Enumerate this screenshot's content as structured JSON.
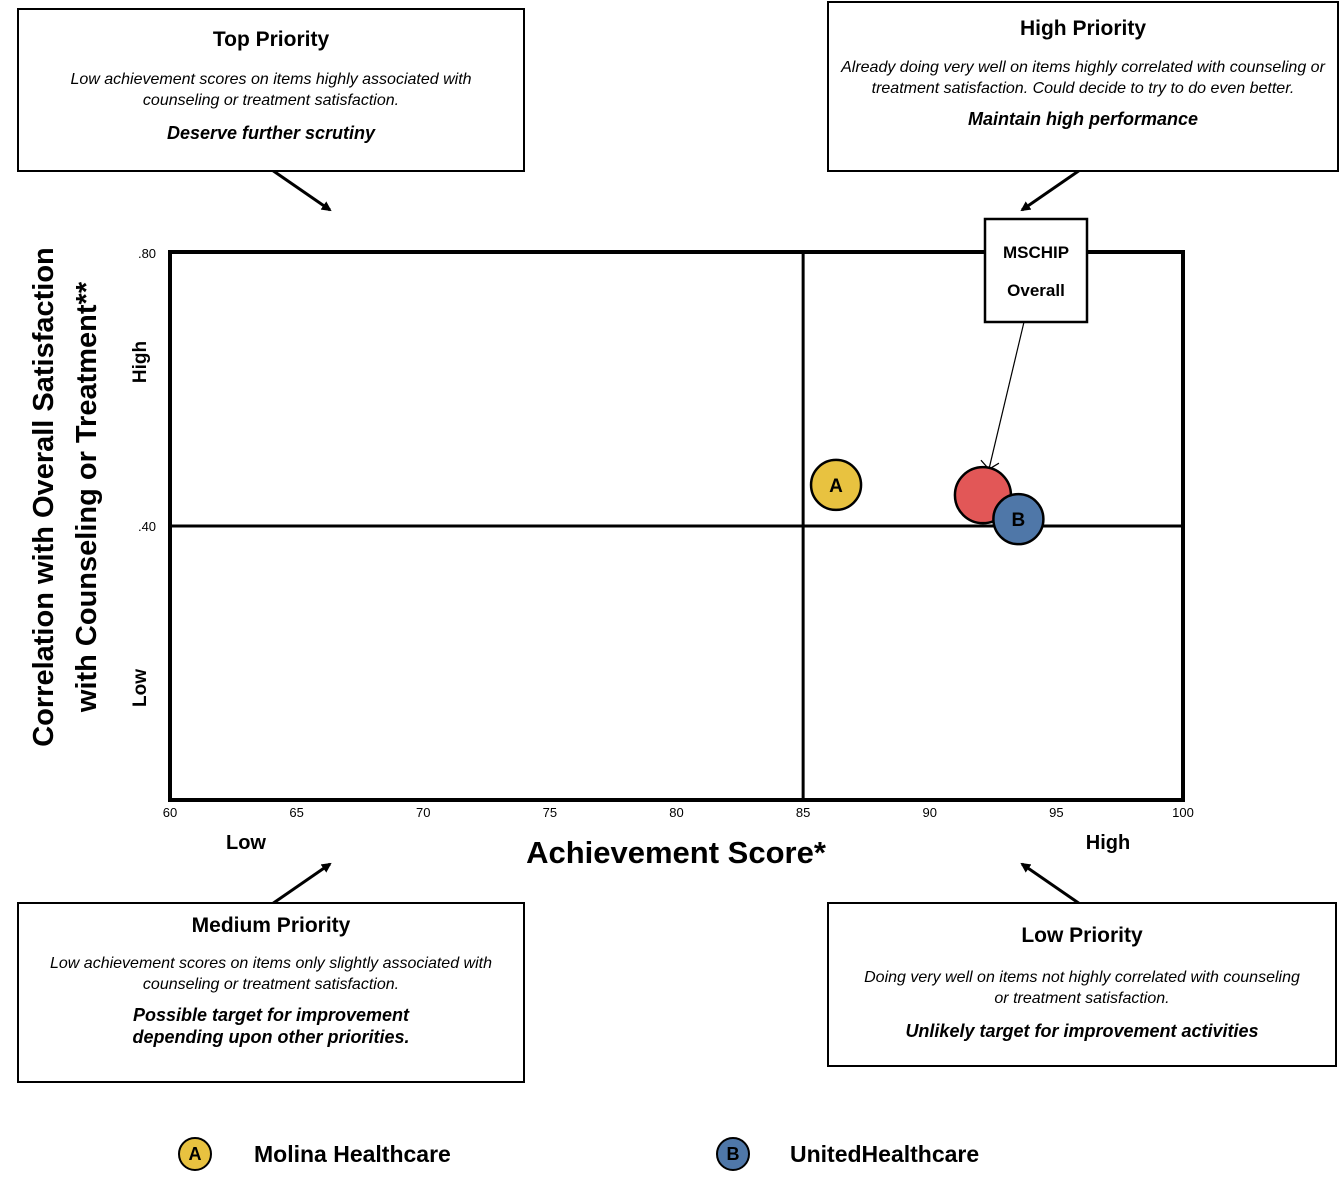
{
  "chart_data": {
    "type": "scatter",
    "xlabel": "Achievement Score*",
    "ylabel_line1": "Correlation with Overall Satisfaction",
    "ylabel_line2": "with Counseling or Treatment**",
    "xlim": [
      60,
      100
    ],
    "ylim": [
      0,
      0.8
    ],
    "x_ticks": [
      "60",
      "65",
      "70",
      "75",
      "80",
      "85",
      "90",
      "95",
      "100"
    ],
    "y_ticks": [
      ".80",
      ".40"
    ],
    "x_qualitative": {
      "low": "Low",
      "high": "High"
    },
    "y_qualitative": {
      "low": "Low",
      "high": "High"
    },
    "quadrant_dividers": {
      "x": 85,
      "y": 0.4
    },
    "points": [
      {
        "label": "A",
        "x": 86.3,
        "y": 0.46,
        "color": "#e8c240"
      },
      {
        "label": "",
        "x": 92.1,
        "y": 0.445,
        "color": "#e25757",
        "callout": "MSCHIP Overall"
      },
      {
        "label": "B",
        "x": 93.5,
        "y": 0.41,
        "color": "#4f77a8"
      }
    ],
    "callout": {
      "line1": "MSCHIP",
      "line2": "Overall"
    }
  },
  "quadrants": {
    "top": {
      "title": "Top Priority",
      "desc": "Low achievement scores on items highly associated with counseling or treatment satisfaction.",
      "action": "Deserve further scrutiny"
    },
    "high": {
      "title": "High Priority",
      "desc": "Already doing very well on items highly correlated with counseling or treatment satisfaction. Could decide to try to do even better.",
      "action": "Maintain high performance"
    },
    "medium": {
      "title": "Medium Priority",
      "desc": "Low achievement scores on items only slightly associated with counseling or treatment satisfaction.",
      "action": "Possible target for improvement depending upon other priorities."
    },
    "low": {
      "title": "Low Priority",
      "desc": "Doing very well on items not highly correlated with counseling or treatment satisfaction.",
      "action": "Unlikely target for improvement activities"
    }
  },
  "legend": [
    {
      "badge": "A",
      "label": "Molina Healthcare",
      "color": "#e8c240"
    },
    {
      "badge": "B",
      "label": "UnitedHealthcare",
      "color": "#4f77a8"
    }
  ]
}
